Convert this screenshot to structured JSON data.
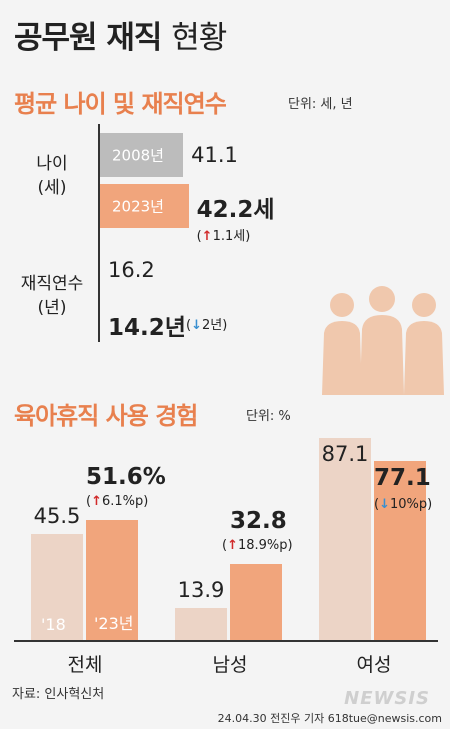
{
  "title": {
    "main": "공무원 재직",
    "sub": "현황"
  },
  "chart_data": [
    {
      "type": "bar",
      "orientation": "horizontal",
      "title": "평균 나이 및 재직연수",
      "unit": "단위: 세, 년",
      "legend": [
        "2008년",
        "2023년"
      ],
      "categories": [
        {
          "label": "나이\n(세)",
          "label_lines": [
            "나이",
            "(세)"
          ],
          "v2008": 41.1,
          "v2023": 42.2,
          "v2008_label": "41.1",
          "v2023_label": "42.2세",
          "change": "1.1세",
          "direction": "up"
        },
        {
          "label": "재직연수\n(년)",
          "label_lines": [
            "재직연수",
            "(년)"
          ],
          "v2008": 16.2,
          "v2023": 14.2,
          "v2008_label": "16.2",
          "v2023_label": "14.2년",
          "change": "2년",
          "direction": "down"
        }
      ]
    },
    {
      "type": "bar",
      "title": "육아휴직 사용 경험",
      "unit": "단위: %",
      "year_labels": [
        "'18",
        "'23년"
      ],
      "categories": [
        {
          "label": "전체",
          "v2018": 45.5,
          "v2023": 51.6,
          "v2018_label": "45.5",
          "v2023_label": "51.6%",
          "change": "6.1%p",
          "direction": "up"
        },
        {
          "label": "남성",
          "v2018": 13.9,
          "v2023": 32.8,
          "v2018_label": "13.9",
          "v2023_label": "32.8",
          "change": "18.9%p",
          "direction": "up"
        },
        {
          "label": "여성",
          "v2018": 87.1,
          "v2023": 77.1,
          "v2018_label": "87.1",
          "v2023_label": "77.1",
          "change": "10%p",
          "direction": "down"
        }
      ]
    }
  ],
  "colors": {
    "gray": "#bcbcbc",
    "orange": "#f1a57c",
    "pale": "#ecd4c6",
    "accent": "#e8804e",
    "up": "#d12a2a",
    "down": "#3a8fd0"
  },
  "footer": {
    "source": "자료: 인사혁신처",
    "credit": "24.04.30 전진우 기자 618tue@newsis.com",
    "brand": "NEWSIS"
  }
}
